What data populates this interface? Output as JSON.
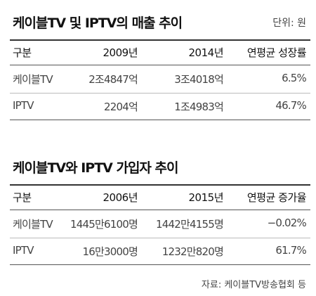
{
  "sections": [
    {
      "title": "케이블TV 및 IPTV의 매출 추이",
      "unit": "단위: 원",
      "table": {
        "header": [
          "구분",
          "2009년",
          "2014년",
          "연평균 성장률"
        ],
        "rows": [
          [
            "케이블TV",
            "2조4847억",
            "3조4018억",
            "6.5%"
          ],
          [
            "IPTV",
            "2204억",
            "1조4983억",
            "46.7%"
          ]
        ]
      }
    },
    {
      "title": "케이블TV와 IPTV 가입자 추이",
      "table": {
        "header": [
          "구분",
          "2006년",
          "2015년",
          "연평균 증가율"
        ],
        "rows": [
          [
            "케이블TV",
            "1445만6100명",
            "1442만4155명",
            "−0.02%"
          ],
          [
            "IPTV",
            "16만3000명",
            "1232만820명",
            "61.7%"
          ]
        ]
      }
    }
  ],
  "source": "자료: 케이블TV방송협회 등"
}
